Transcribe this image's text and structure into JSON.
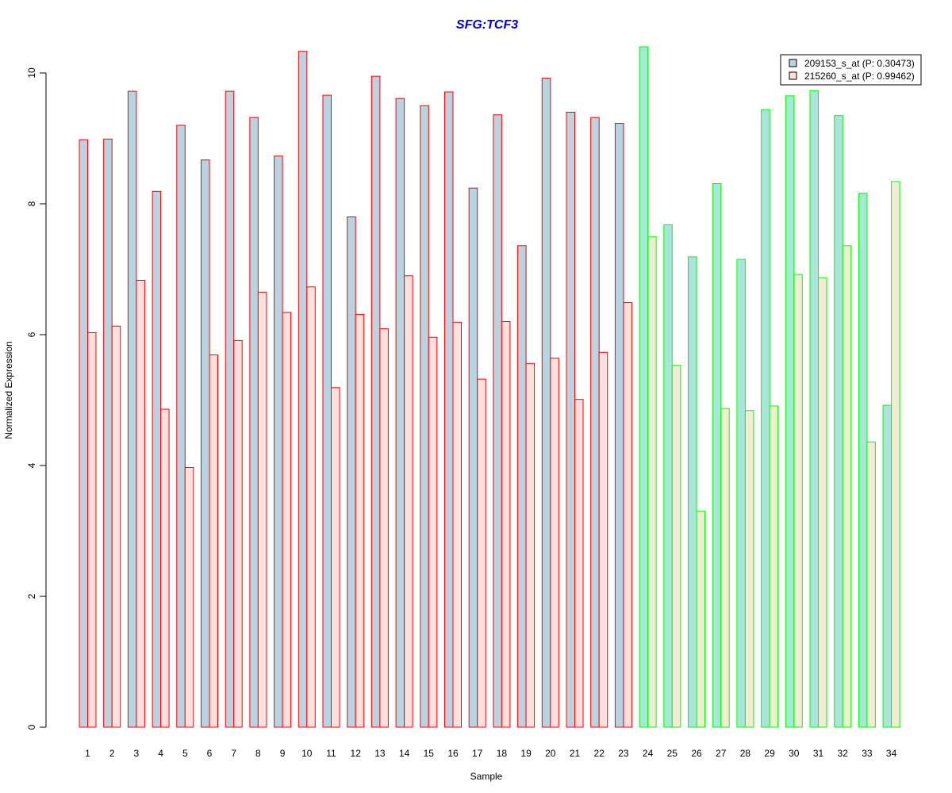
{
  "chart_data": {
    "type": "bar",
    "title": "SFG:TCF3",
    "xlabel": "Sample",
    "ylabel": "Normalized Expression",
    "ylim": [
      0,
      10.4
    ],
    "yticks": [
      0,
      2,
      4,
      6,
      8,
      10
    ],
    "categories": [
      "1",
      "2",
      "3",
      "4",
      "5",
      "6",
      "7",
      "8",
      "9",
      "10",
      "11",
      "12",
      "13",
      "14",
      "15",
      "16",
      "17",
      "18",
      "19",
      "20",
      "21",
      "22",
      "23",
      "24",
      "25",
      "26",
      "27",
      "28",
      "29",
      "30",
      "31",
      "32",
      "33",
      "34"
    ],
    "series": [
      {
        "name": "209153_s_at (P: 0.30473)",
        "values": [
          8.98,
          8.99,
          9.72,
          8.19,
          9.2,
          8.67,
          9.72,
          9.32,
          8.73,
          10.33,
          9.66,
          7.8,
          9.95,
          9.61,
          9.5,
          9.71,
          8.24,
          9.36,
          7.36,
          9.92,
          9.4,
          9.32,
          9.23,
          10.4,
          7.68,
          7.19,
          8.31,
          7.15,
          9.44,
          9.65,
          9.73,
          9.35,
          8.16,
          4.92
        ]
      },
      {
        "name": "215260_s_at (P: 0.99462)",
        "values": [
          6.03,
          6.13,
          6.83,
          4.86,
          3.97,
          5.69,
          5.91,
          6.65,
          6.34,
          6.73,
          5.19,
          6.31,
          6.09,
          6.9,
          5.96,
          6.19,
          5.32,
          6.2,
          5.56,
          5.64,
          5.01,
          5.73,
          6.49,
          7.5,
          5.53,
          3.3,
          4.87,
          4.84,
          4.91,
          6.92,
          6.87,
          7.36,
          4.36,
          8.34
        ]
      }
    ],
    "groups": [
      {
        "range": [
          1,
          23
        ],
        "border": "#ff0000",
        "fills": [
          "#b9d3e0",
          "#ffe0dc"
        ]
      },
      {
        "range": [
          24,
          34
        ],
        "border": "#00ff00",
        "fills": [
          "#a8e6d8",
          "#f0eed2"
        ]
      }
    ],
    "legend": {
      "placement": "top-right",
      "items": [
        {
          "label": "209153_s_at (P: 0.30473)",
          "color": "#b9d3e0"
        },
        {
          "label": "215260_s_at (P: 0.99462)",
          "color": "#ffe0dc"
        }
      ]
    },
    "title_color": "#0000cd",
    "grid": false
  }
}
